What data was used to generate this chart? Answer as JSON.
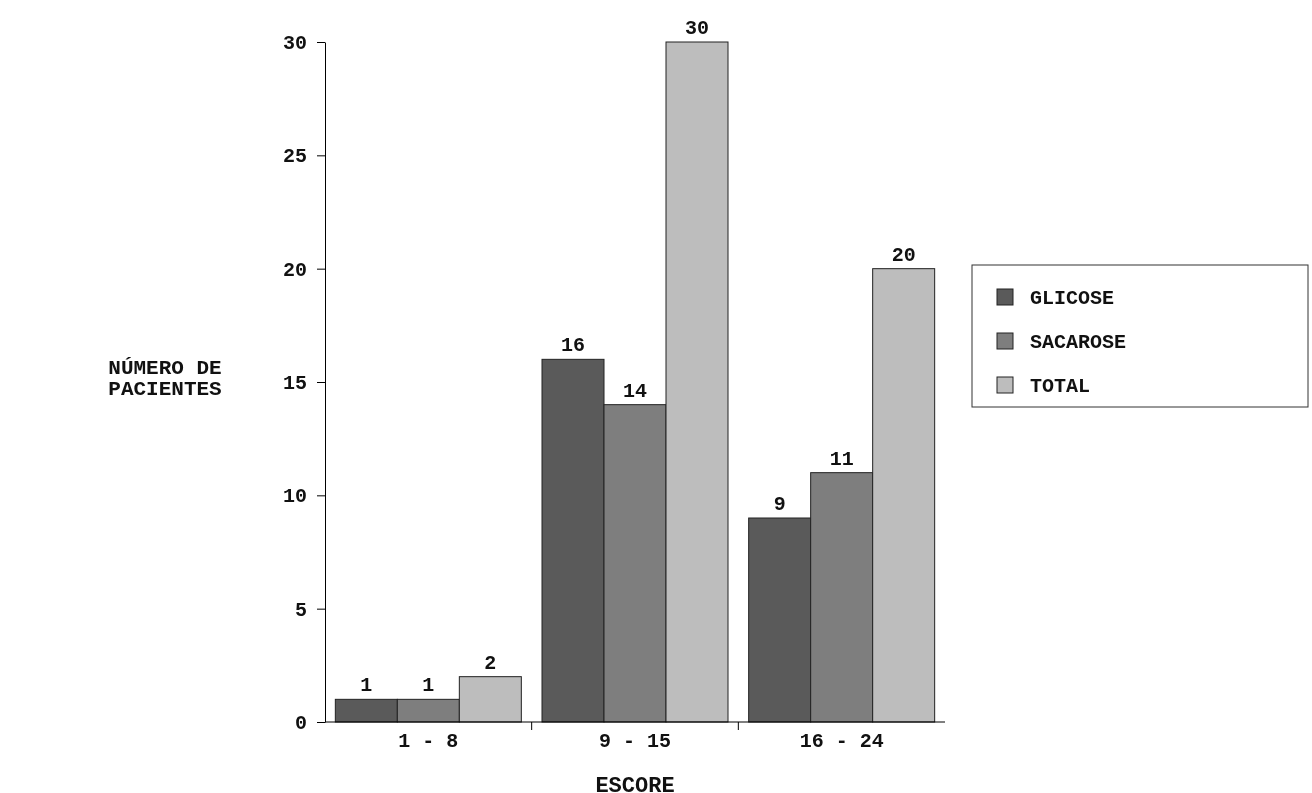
{
  "chart_data": {
    "type": "bar",
    "xlabel": "ESCORE",
    "ylabel": "NÚMERO DE PACIENTES",
    "categories": [
      "1 - 8",
      "9 - 15",
      "16 - 24"
    ],
    "series": [
      {
        "name": "GLICOSE",
        "color": "#5a5a5a",
        "values": [
          1,
          16,
          9
        ]
      },
      {
        "name": "SACAROSE",
        "color": "#7e7e7e",
        "values": [
          1,
          14,
          11
        ]
      },
      {
        "name": "TOTAL",
        "color": "#bdbdbd",
        "values": [
          2,
          30,
          20
        ]
      }
    ],
    "ylim": [
      0,
      30
    ],
    "yticks": [
      0,
      5,
      10,
      15,
      20,
      25,
      30
    ],
    "data_labels": true,
    "legend": "right",
    "grid": false
  }
}
